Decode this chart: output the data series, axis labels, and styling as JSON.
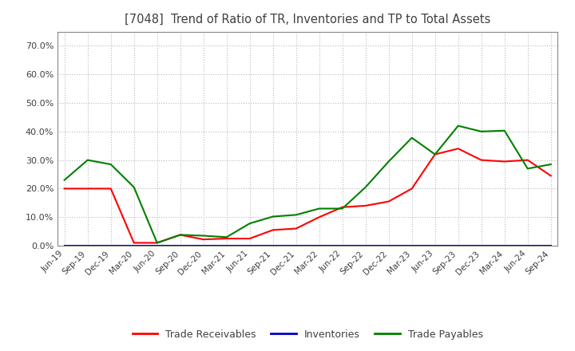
{
  "title": "[7048]  Trend of Ratio of TR, Inventories and TP to Total Assets",
  "x_labels": [
    "Jun-19",
    "Sep-19",
    "Dec-19",
    "Mar-20",
    "Jun-20",
    "Sep-20",
    "Dec-20",
    "Mar-21",
    "Jun-21",
    "Sep-21",
    "Dec-21",
    "Mar-22",
    "Jun-22",
    "Sep-22",
    "Dec-22",
    "Mar-23",
    "Jun-23",
    "Sep-23",
    "Dec-23",
    "Mar-24",
    "Jun-24",
    "Sep-24"
  ],
  "trade_receivables": [
    0.2,
    0.2,
    0.2,
    0.01,
    0.01,
    0.038,
    0.022,
    0.025,
    0.025,
    0.055,
    0.06,
    0.1,
    0.135,
    0.14,
    0.155,
    0.2,
    0.32,
    0.34,
    0.3,
    0.295,
    0.3,
    0.245
  ],
  "inventories": [
    0.0,
    0.0,
    0.0,
    0.0,
    0.0,
    0.0,
    0.0,
    0.0,
    0.0,
    0.0,
    0.0,
    0.0,
    0.0,
    0.0,
    0.0,
    0.0,
    0.0,
    0.0,
    0.0,
    0.0,
    0.0,
    0.0
  ],
  "trade_payables": [
    0.23,
    0.3,
    0.285,
    0.205,
    0.01,
    0.038,
    0.035,
    0.03,
    0.078,
    0.102,
    0.108,
    0.13,
    0.13,
    0.205,
    0.295,
    0.378,
    0.32,
    0.42,
    0.4,
    0.403,
    0.27,
    0.285
  ],
  "tr_color": "#ff0000",
  "inv_color": "#0000cc",
  "tp_color": "#008000",
  "background_color": "#ffffff",
  "grid_color": "#aaaaaa",
  "title_color": "#404040",
  "ylim": [
    0.0,
    0.75
  ],
  "yticks": [
    0.0,
    0.1,
    0.2,
    0.3,
    0.4,
    0.5,
    0.6,
    0.7
  ],
  "legend_labels": [
    "Trade Receivables",
    "Inventories",
    "Trade Payables"
  ]
}
